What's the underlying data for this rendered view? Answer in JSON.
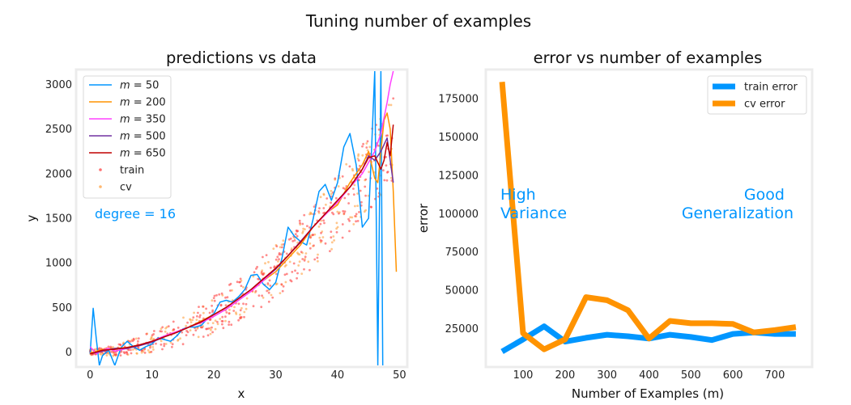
{
  "suptitle": "Tuning number of examples",
  "chart_data": [
    {
      "type": "line",
      "title": "predictions vs data",
      "xlabel": "x",
      "ylabel": "y",
      "xlim": [
        -2,
        51
      ],
      "ylim": [
        -150,
        3150
      ],
      "xticks": [
        0,
        10,
        20,
        30,
        40,
        50
      ],
      "yticks": [
        0,
        500,
        1000,
        1500,
        2000,
        2500,
        3000
      ],
      "grid": false,
      "legend_position": "top-left",
      "annotation": {
        "text": "degree = 16",
        "color": "#0096ff"
      },
      "series": [
        {
          "name": "$m = 50$",
          "label_base": "m",
          "label_rest": " = 50",
          "color": "#0096ff",
          "x": [
            0,
            0.5,
            1,
            1.5,
            2,
            3,
            4,
            5,
            6,
            7,
            8,
            9,
            10,
            11,
            12,
            13,
            14,
            15,
            16,
            17,
            18,
            19,
            20,
            21,
            22,
            23,
            24,
            25,
            26,
            27,
            28,
            29,
            30,
            31,
            32,
            33,
            34,
            35,
            36,
            37,
            38,
            39,
            40,
            41,
            42,
            43,
            44,
            45,
            45.5,
            46,
            46.5,
            47,
            47.3
          ],
          "y": [
            -20,
            490,
            150,
            -150,
            -40,
            20,
            -150,
            50,
            120,
            60,
            20,
            60,
            90,
            160,
            140,
            120,
            180,
            260,
            280,
            280,
            300,
            380,
            430,
            560,
            580,
            560,
            620,
            700,
            860,
            870,
            760,
            700,
            780,
            1050,
            1400,
            1300,
            1240,
            1200,
            1480,
            1800,
            1880,
            1700,
            1900,
            2300,
            2450,
            2100,
            1400,
            1500,
            2300,
            3150,
            -150,
            3150,
            -150
          ]
        },
        {
          "name": "$m = 200$",
          "label_base": "m",
          "label_rest": " = 200",
          "color": "#ff9300",
          "x": [
            0,
            2,
            4,
            6,
            8,
            10,
            12,
            14,
            16,
            18,
            20,
            22,
            24,
            26,
            28,
            30,
            32,
            34,
            36,
            38,
            40,
            42,
            44,
            45,
            46,
            46.5,
            47,
            47.5,
            48,
            48.5,
            49,
            49.5
          ],
          "y": [
            -10,
            30,
            40,
            50,
            80,
            120,
            170,
            220,
            280,
            350,
            420,
            500,
            600,
            700,
            800,
            900,
            1050,
            1200,
            1400,
            1550,
            1650,
            1900,
            2100,
            2250,
            1950,
            1900,
            2250,
            2600,
            2680,
            2500,
            1800,
            900
          ]
        },
        {
          "name": "$m = 350$",
          "label_base": "m",
          "label_rest": " = 350",
          "color": "#ff40ff",
          "x": [
            0,
            1,
            2,
            3,
            4,
            6,
            8,
            10,
            12,
            14,
            16,
            18,
            20,
            22,
            24,
            26,
            28,
            30,
            32,
            34,
            36,
            38,
            40,
            42,
            44,
            46,
            47,
            48,
            48.5,
            49
          ],
          "y": [
            60,
            -20,
            20,
            40,
            10,
            40,
            80,
            120,
            180,
            230,
            280,
            330,
            400,
            480,
            580,
            680,
            800,
            930,
            1080,
            1230,
            1400,
            1540,
            1680,
            1850,
            2000,
            2250,
            2450,
            2800,
            3000,
            3150
          ]
        },
        {
          "name": "$m = 500$",
          "label_base": "m",
          "label_rest": " = 500",
          "color": "#7030a0",
          "x": [
            0,
            2,
            4,
            6,
            8,
            10,
            12,
            14,
            16,
            18,
            20,
            22,
            24,
            26,
            28,
            30,
            32,
            34,
            36,
            38,
            40,
            42,
            44,
            45,
            46,
            47,
            48,
            49
          ],
          "y": [
            -20,
            10,
            40,
            40,
            70,
            110,
            170,
            220,
            280,
            340,
            420,
            500,
            600,
            700,
            820,
            930,
            1080,
            1240,
            1400,
            1550,
            1700,
            1850,
            2050,
            2200,
            2150,
            2250,
            2400,
            1900
          ]
        },
        {
          "name": "$m = 650$",
          "label_base": "m",
          "label_rest": " = 650",
          "color": "#c00000",
          "x": [
            0,
            2,
            4,
            6,
            8,
            10,
            12,
            14,
            16,
            18,
            20,
            22,
            24,
            26,
            28,
            30,
            32,
            34,
            36,
            38,
            40,
            42,
            44,
            45,
            46,
            47,
            47.5,
            48,
            48.5,
            49
          ],
          "y": [
            -20,
            20,
            30,
            50,
            80,
            120,
            170,
            220,
            280,
            340,
            420,
            500,
            600,
            700,
            820,
            940,
            1080,
            1230,
            1400,
            1550,
            1700,
            1850,
            2050,
            2180,
            2200,
            2050,
            2150,
            2350,
            2200,
            2550
          ]
        },
        {
          "name": "train",
          "color": "#ff4040",
          "kind": "scatter",
          "points": "generated-dense-quadratic"
        },
        {
          "name": "cv",
          "color": "#ffa040",
          "kind": "scatter",
          "points": "generated-dense-quadratic"
        }
      ]
    },
    {
      "type": "line",
      "title": "error vs number of examples",
      "xlabel": "Number of Examples (m)",
      "ylabel": "error",
      "xlim": [
        15,
        785
      ],
      "ylim": [
        1000,
        193000
      ],
      "xticks": [
        100,
        200,
        300,
        400,
        500,
        600,
        700
      ],
      "yticks": [
        25000,
        50000,
        75000,
        100000,
        125000,
        150000,
        175000
      ],
      "grid": false,
      "legend_position": "top-right",
      "annotations": [
        {
          "lines": [
            "High",
            "Variance"
          ],
          "color": "#0096ff"
        },
        {
          "lines": [
            "Good",
            "Generalization"
          ],
          "color": "#0096ff"
        }
      ],
      "x": [
        50,
        100,
        150,
        200,
        250,
        300,
        350,
        400,
        450,
        500,
        550,
        600,
        650,
        700,
        750
      ],
      "series": [
        {
          "name": "train error",
          "color": "#0096ff",
          "values": [
            10000,
            18000,
            26500,
            16500,
            19000,
            21000,
            20000,
            18500,
            21000,
            19500,
            17500,
            21500,
            22500,
            21500,
            21500
          ]
        },
        {
          "name": "cv error",
          "color": "#ff9300",
          "values": [
            186000,
            22000,
            11500,
            18000,
            45500,
            43500,
            37000,
            18500,
            30000,
            28500,
            28500,
            28000,
            22500,
            24000,
            26000
          ]
        }
      ]
    }
  ]
}
